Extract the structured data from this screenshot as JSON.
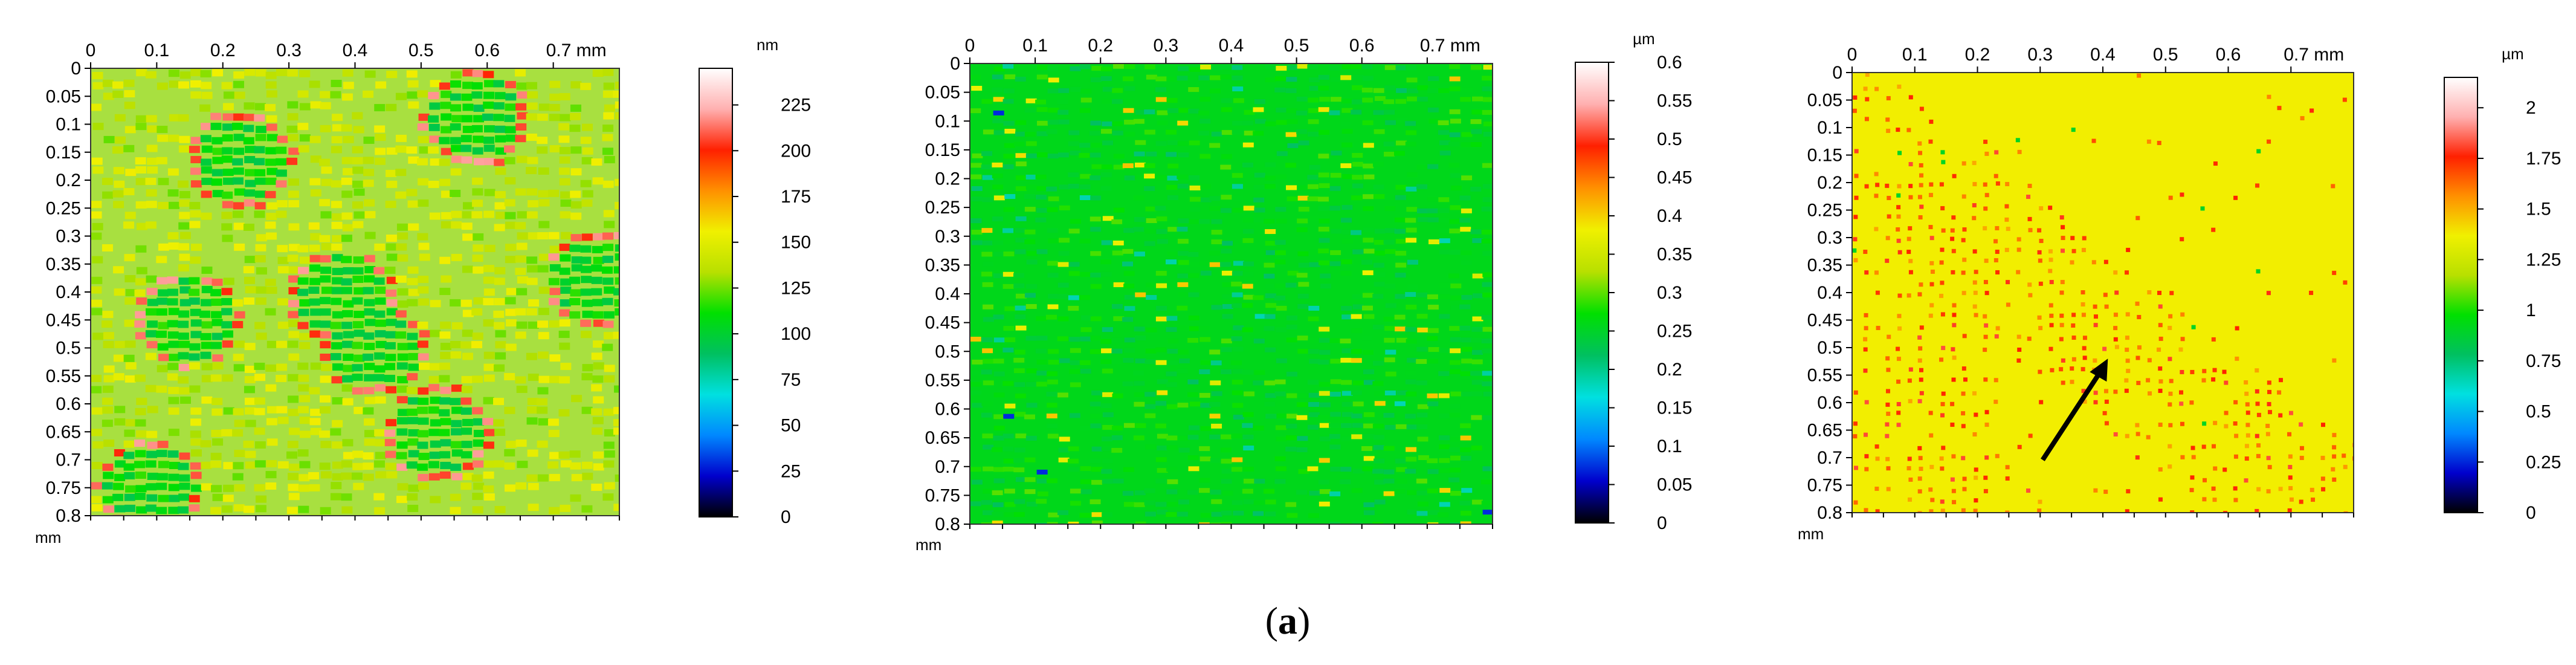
{
  "colormap": [
    "#000000",
    "#0000cc",
    "#0088ff",
    "#00e0e0",
    "#00c060",
    "#00e000",
    "#b8e000",
    "#f0f000",
    "#ff9000",
    "#ff2000",
    "#ffb0b0",
    "#ffffff"
  ],
  "panels": [
    {
      "id": "panel-1",
      "x_ticks": [
        "0",
        "0.1",
        "0.2",
        "0.3",
        "0.4",
        "0.5",
        "0.6",
        "0.7 mm"
      ],
      "y_ticks": [
        "0",
        "0.05",
        "0.1",
        "0.15",
        "0.2",
        "0.25",
        "0.3",
        "0.35",
        "0.4",
        "0.45",
        "0.5",
        "0.55",
        "0.6",
        "0.65",
        "0.7",
        "0.75",
        "0.8"
      ],
      "y_unit": "mm",
      "scale_unit": "nm",
      "scale_ticks": [
        "0",
        "25",
        "50",
        "75",
        "100",
        "125",
        "150",
        "175",
        "200",
        "225"
      ],
      "scale_values": [
        0,
        25,
        50,
        75,
        100,
        125,
        150,
        175,
        200,
        225
      ],
      "scale_max": 245,
      "surface": "grains"
    },
    {
      "id": "panel-2",
      "x_ticks": [
        "0",
        "0.1",
        "0.2",
        "0.3",
        "0.4",
        "0.5",
        "0.6",
        "0.7 mm"
      ],
      "y_ticks": [
        "0",
        "0.05",
        "0.1",
        "0.15",
        "0.2",
        "0.25",
        "0.3",
        "0.35",
        "0.4",
        "0.45",
        "0.5",
        "0.55",
        "0.6",
        "0.65",
        "0.7",
        "0.75",
        "0.8"
      ],
      "y_unit": "mm",
      "scale_unit": "µm",
      "scale_ticks": [
        "0",
        "0.05",
        "0.1",
        "0.15",
        "0.2",
        "0.25",
        "0.3",
        "0.35",
        "0.4",
        "0.45",
        "0.5",
        "0.55",
        "0.6"
      ],
      "scale_values": [
        0,
        0.05,
        0.1,
        0.15,
        0.2,
        0.25,
        0.3,
        0.35,
        0.4,
        0.45,
        0.5,
        0.55,
        0.6
      ],
      "scale_max": 0.6,
      "surface": "noise"
    },
    {
      "id": "panel-3",
      "x_ticks": [
        "0",
        "0.1",
        "0.2",
        "0.3",
        "0.4",
        "0.5",
        "0.6",
        "0.7 mm"
      ],
      "y_ticks": [
        "0",
        "0.05",
        "0.1",
        "0.15",
        "0.2",
        "0.25",
        "0.3",
        "0.35",
        "0.4",
        "0.45",
        "0.5",
        "0.55",
        "0.6",
        "0.65",
        "0.7",
        "0.75",
        "0.8"
      ],
      "y_unit": "mm",
      "scale_unit": "µm",
      "scale_ticks": [
        "0",
        "0.25",
        "0.5",
        "0.75",
        "1",
        "1.25",
        "1.5",
        "1.75",
        "2"
      ],
      "scale_values": [
        0,
        0.25,
        0.5,
        0.75,
        1,
        1.25,
        1.5,
        1.75,
        2
      ],
      "scale_max": 2.15,
      "surface": "yellow",
      "has_arrow": true
    }
  ],
  "caption": {
    "open": "(",
    "letter": "a",
    "close": ")"
  }
}
